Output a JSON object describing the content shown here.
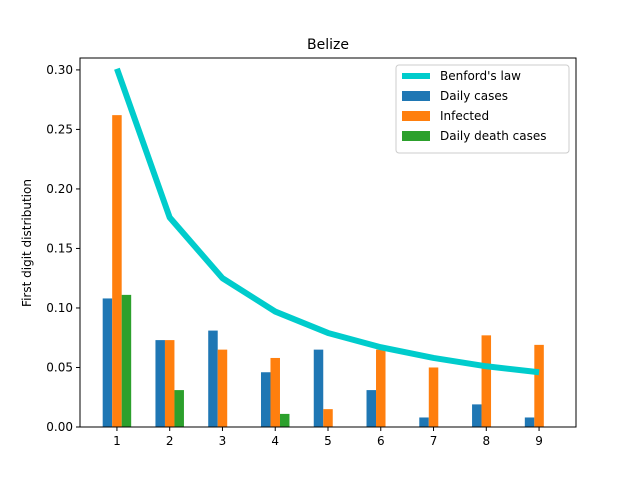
{
  "chart_data": {
    "type": "bar",
    "title": "Belize",
    "xlabel": "",
    "ylabel": "First digit distribution",
    "categories": [
      "1",
      "2",
      "3",
      "4",
      "5",
      "6",
      "7",
      "8",
      "9"
    ],
    "ylim": [
      0,
      0.3
    ],
    "yticks": [
      "0.00",
      "0.05",
      "0.10",
      "0.15",
      "0.20",
      "0.25",
      "0.30"
    ],
    "grid": false,
    "legend_position": "top-right",
    "line_series": {
      "name": "Benford's law",
      "color": "#00cccc",
      "values": [
        0.301,
        0.176,
        0.125,
        0.097,
        0.079,
        0.067,
        0.058,
        0.051,
        0.046
      ]
    },
    "series": [
      {
        "name": "Daily cases",
        "color": "#1f77b4",
        "values": [
          0.108,
          0.073,
          0.081,
          0.046,
          0.065,
          0.031,
          0.008,
          0.019,
          0.008
        ]
      },
      {
        "name": "Infected",
        "color": "#ff7f0e",
        "values": [
          0.262,
          0.073,
          0.065,
          0.058,
          0.015,
          0.065,
          0.05,
          0.077,
          0.069
        ]
      },
      {
        "name": "Daily death cases",
        "color": "#2ca02c",
        "values": [
          0.111,
          0.031,
          0.0,
          0.011,
          0.0,
          0.0,
          0.0,
          0.0,
          0.0
        ]
      }
    ]
  }
}
